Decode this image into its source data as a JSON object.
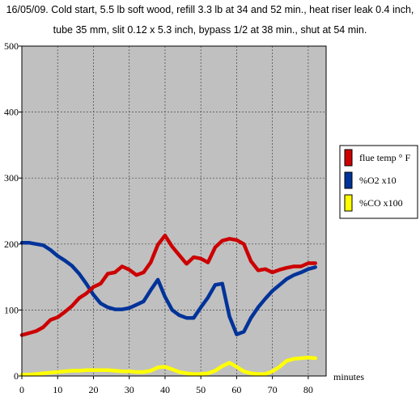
{
  "title_line1": "16/05/09. Cold start, 5.5 lb soft wood, refill 3.3 lb at 34 and 52 min., heat riser leak 0.4 inch,",
  "title_line2": "tube 35 mm, slit 0.12 x 5.3 inch, bypass 1/2 at 38 min., shut at 54 min.",
  "chart_data": {
    "type": "line",
    "title": "16/05/09. Cold start, 5.5 lb soft wood, refill 3.3 lb at 34 and 52 min., heat riser leak 0.4 inch, tube 35 mm, slit 0.12 x 5.3 inch, bypass 1/2 at 38 min., shut at 54 min.",
    "xlabel": "minutes",
    "ylabel": "",
    "xlim": [
      0,
      85
    ],
    "ylim": [
      0,
      500
    ],
    "x_ticks": [
      "0",
      "10",
      "20",
      "30",
      "40",
      "50",
      "60",
      "70",
      "80"
    ],
    "y_ticks": [
      "0",
      "100",
      "200",
      "300",
      "400",
      "500"
    ],
    "grid": true,
    "legend_position": "right",
    "background_color": "#c0c0c0",
    "series": [
      {
        "name": "flue temp ° F",
        "color": "#cc0000",
        "x": [
          0,
          2,
          4,
          6,
          8,
          10,
          12,
          14,
          16,
          18,
          20,
          22,
          24,
          26,
          28,
          30,
          32,
          34,
          36,
          38,
          40,
          42,
          44,
          46,
          48,
          50,
          52,
          54,
          56,
          58,
          60,
          62,
          64,
          66,
          68,
          70,
          72,
          74,
          76,
          78,
          80,
          82
        ],
        "y": [
          62,
          65,
          68,
          74,
          85,
          89,
          97,
          106,
          118,
          125,
          135,
          140,
          155,
          157,
          166,
          161,
          153,
          157,
          172,
          199,
          213,
          196,
          183,
          170,
          180,
          178,
          172,
          195,
          205,
          208,
          206,
          200,
          174,
          160,
          162,
          157,
          161,
          164,
          166,
          166,
          171,
          171
        ]
      },
      {
        "name": "%O2 x10",
        "color": "#003399",
        "x": [
          0,
          2,
          4,
          6,
          8,
          10,
          12,
          14,
          16,
          18,
          20,
          22,
          24,
          26,
          28,
          30,
          32,
          34,
          36,
          38,
          40,
          42,
          44,
          46,
          48,
          50,
          52,
          54,
          56,
          58,
          60,
          62,
          64,
          66,
          68,
          70,
          72,
          74,
          76,
          78,
          80,
          82
        ],
        "y": [
          202,
          202,
          200,
          198,
          191,
          182,
          175,
          167,
          155,
          140,
          123,
          110,
          104,
          101,
          101,
          103,
          108,
          113,
          130,
          146,
          120,
          100,
          92,
          88,
          88,
          104,
          119,
          138,
          140,
          90,
          63,
          67,
          88,
          104,
          117,
          129,
          138,
          147,
          153,
          157,
          162,
          165
        ]
      },
      {
        "name": "%CO x100",
        "color": "#ffff00",
        "x": [
          0,
          2,
          4,
          6,
          8,
          10,
          12,
          14,
          16,
          18,
          20,
          22,
          24,
          26,
          28,
          30,
          32,
          34,
          36,
          38,
          40,
          42,
          44,
          46,
          48,
          50,
          52,
          54,
          56,
          58,
          60,
          62,
          64,
          66,
          68,
          70,
          72,
          74,
          76,
          78,
          80,
          82
        ],
        "y": [
          2,
          2,
          3,
          4,
          5,
          6,
          7,
          8,
          8,
          9,
          9,
          9,
          9,
          8,
          7,
          7,
          6,
          6,
          8,
          13,
          14,
          10,
          6,
          4,
          3,
          3,
          4,
          8,
          15,
          20,
          14,
          7,
          4,
          3,
          3,
          7,
          14,
          23,
          26,
          27,
          28,
          27
        ]
      }
    ]
  }
}
